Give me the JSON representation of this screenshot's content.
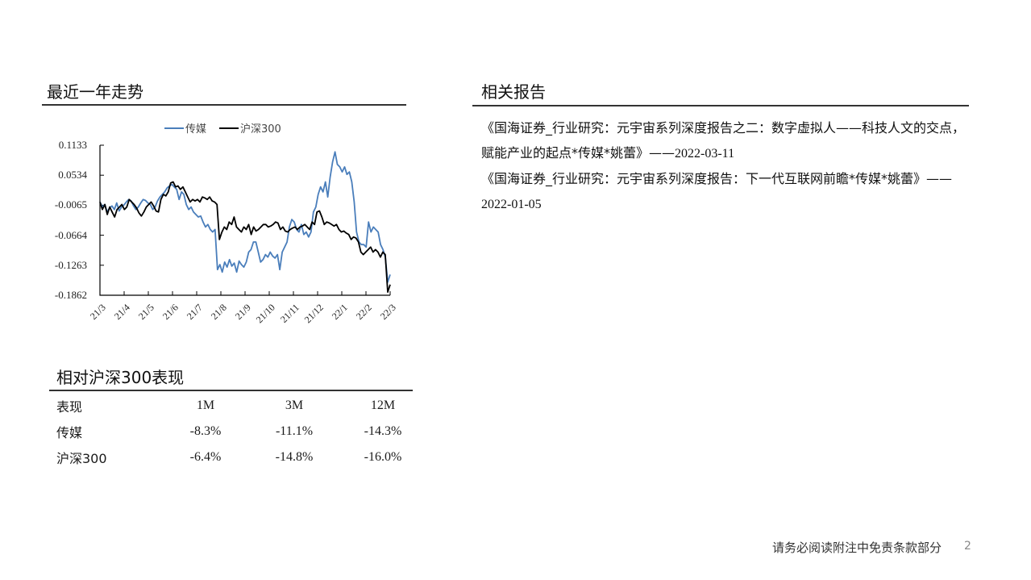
{
  "trend": {
    "title": "最近一年走势",
    "legend": [
      {
        "label": "传媒",
        "color": "#4a7ebb"
      },
      {
        "label": "沪深300",
        "color": "#000000"
      }
    ]
  },
  "chart_data": {
    "type": "line",
    "title": "最近一年走势",
    "xlabel": "",
    "ylabel": "",
    "ylim": [
      -0.1862,
      0.1133
    ],
    "yticks": [
      "0.1133",
      "0.0534",
      "-0.0065",
      "-0.0664",
      "-0.1263",
      "-0.1862"
    ],
    "xticks": [
      "21/3",
      "21/4",
      "21/5",
      "21/6",
      "21/7",
      "21/8",
      "21/9",
      "21/10",
      "21/11",
      "21/12",
      "22/1",
      "22/2",
      "22/3"
    ],
    "grid": false,
    "legend_position": "top",
    "series": [
      {
        "name": "传媒",
        "color": "#4a7ebb",
        "values": [
          0.0,
          -0.01,
          -0.005,
          -0.02,
          -0.012,
          -0.008,
          -0.015,
          -0.002,
          -0.018,
          -0.01,
          -0.006,
          0.0,
          0.005,
          0.002,
          -0.008,
          -0.015,
          -0.01,
          -0.002,
          0.005,
          0.003,
          -0.002,
          -0.005,
          -0.015,
          -0.01,
          0.002,
          0.01,
          0.015,
          0.02,
          0.028,
          0.032,
          0.035,
          0.03,
          0.025,
          0.005,
          0.02,
          0.015,
          -0.005,
          -0.015,
          -0.01,
          -0.02,
          -0.025,
          -0.03,
          -0.028,
          -0.04,
          -0.05,
          -0.045,
          -0.055,
          -0.06,
          -0.055,
          -0.135,
          -0.125,
          -0.14,
          -0.12,
          -0.13,
          -0.115,
          -0.128,
          -0.122,
          -0.14,
          -0.118,
          -0.125,
          -0.13,
          -0.12,
          -0.1,
          -0.095,
          -0.08,
          -0.08,
          -0.1,
          -0.12,
          -0.115,
          -0.105,
          -0.11,
          -0.1,
          -0.108,
          -0.112,
          -0.105,
          -0.135,
          -0.1,
          -0.09,
          -0.08,
          -0.05,
          -0.035,
          -0.04,
          -0.055,
          -0.06,
          -0.045,
          -0.065,
          -0.06,
          -0.07,
          -0.06,
          -0.02,
          -0.01,
          0.015,
          0.03,
          0.02,
          0.04,
          0.01,
          0.05,
          0.08,
          0.1,
          0.075,
          0.07,
          0.06,
          0.07,
          0.055,
          0.06,
          0.04,
          0.0,
          -0.06,
          -0.08,
          -0.085,
          -0.085,
          -0.09,
          -0.04,
          -0.06,
          -0.05,
          -0.055,
          -0.06,
          -0.085,
          -0.095,
          -0.11,
          -0.16,
          -0.145
        ]
      },
      {
        "name": "沪深300",
        "color": "#000000",
        "values": [
          0.0,
          -0.015,
          -0.005,
          -0.025,
          -0.01,
          -0.02,
          -0.03,
          -0.015,
          -0.01,
          -0.005,
          -0.015,
          -0.01,
          0.005,
          0.0,
          -0.005,
          -0.012,
          -0.022,
          -0.028,
          -0.02,
          -0.01,
          -0.005,
          0.0,
          -0.008,
          -0.018,
          -0.02,
          0.005,
          0.015,
          0.012,
          0.02,
          0.038,
          0.04,
          0.03,
          0.032,
          0.025,
          0.03,
          0.02,
          0.01,
          0.0,
          0.005,
          0.002,
          0.005,
          0.0,
          0.01,
          0.008,
          0.005,
          0.01,
          0.002,
          0.0,
          -0.005,
          -0.075,
          -0.06,
          -0.05,
          -0.055,
          -0.04,
          -0.045,
          -0.03,
          -0.05,
          -0.055,
          -0.06,
          -0.05,
          -0.055,
          -0.045,
          -0.065,
          -0.05,
          -0.058,
          -0.055,
          -0.05,
          -0.045,
          -0.045,
          -0.05,
          -0.048,
          -0.045,
          -0.04,
          -0.042,
          -0.055,
          -0.05,
          -0.058,
          -0.06,
          -0.055,
          -0.052,
          -0.05,
          -0.055,
          -0.05,
          -0.048,
          -0.045,
          -0.05,
          -0.055,
          -0.04,
          -0.045,
          -0.02,
          -0.018,
          -0.03,
          -0.045,
          -0.04,
          -0.042,
          -0.045,
          -0.048,
          -0.045,
          -0.055,
          -0.06,
          -0.058,
          -0.062,
          -0.065,
          -0.075,
          -0.07,
          -0.072,
          -0.08,
          -0.1,
          -0.105,
          -0.1,
          -0.095,
          -0.09,
          -0.1,
          -0.095,
          -0.1,
          -0.11,
          -0.1,
          -0.105,
          -0.18,
          -0.165
        ]
      }
    ]
  },
  "performance": {
    "title": "相对沪深300表现",
    "headers": [
      "表现",
      "1M",
      "3M",
      "12M"
    ],
    "rows": [
      {
        "name": "传媒",
        "m1": "-8.3%",
        "m3": "-11.1%",
        "m12": "-14.3%"
      },
      {
        "name": "沪深300",
        "m1": "-6.4%",
        "m3": "-14.8%",
        "m12": "-16.0%"
      }
    ]
  },
  "reports": {
    "title": "相关报告",
    "items": [
      {
        "text": "《国海证券_行业研究：元宇宙系列深度报告之二：数字虚拟人——科技人文的交点，赋能产业的起点*传媒*姚蕾》——",
        "date": "2022-03-11"
      },
      {
        "text": "《国海证券_行业研究：元宇宙系列深度报告：下一代互联网前瞻*传媒*姚蕾》——",
        "date": "2022-01-05"
      }
    ]
  },
  "footer": {
    "disclaimer": "请务必阅读附注中免责条款部分",
    "page": "2"
  }
}
